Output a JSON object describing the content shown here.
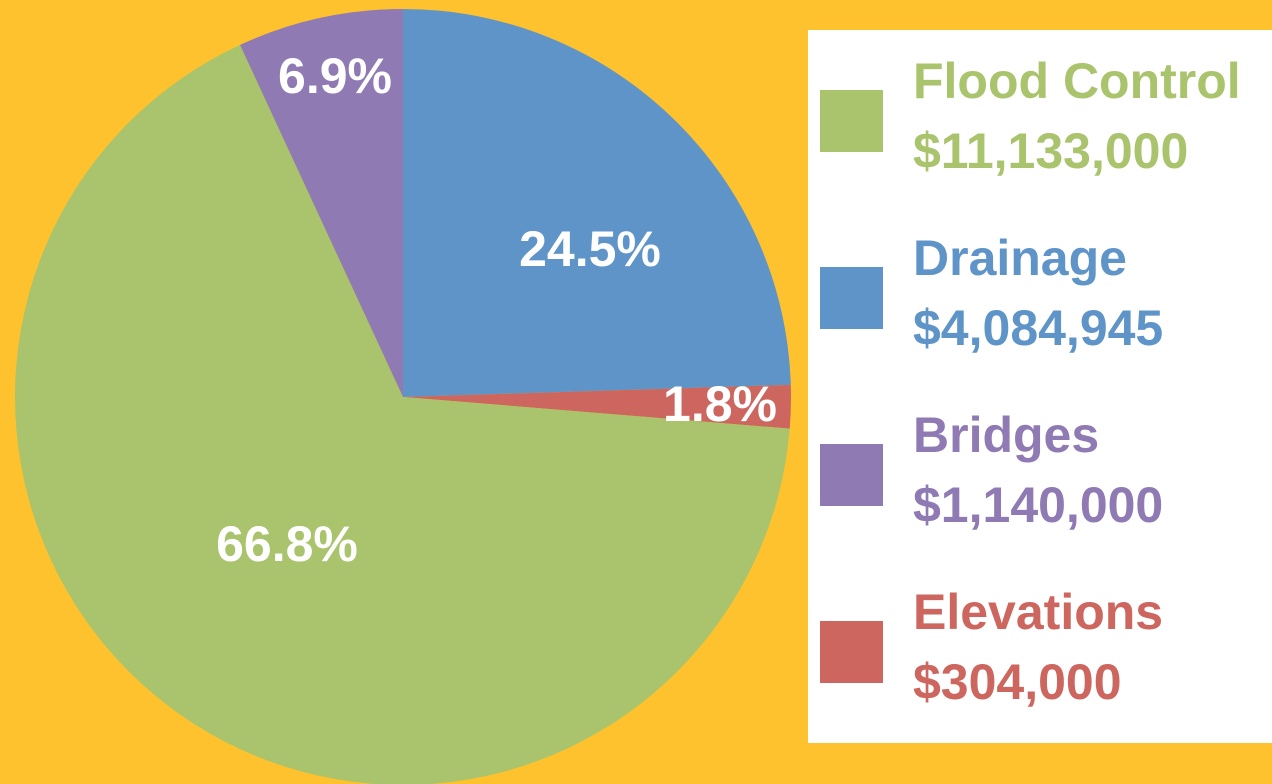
{
  "chart_data": {
    "type": "pie",
    "categories": [
      "Drainage",
      "Elevations",
      "Flood Control",
      "Bridges"
    ],
    "values": [
      24.5,
      1.8,
      66.8,
      6.9
    ],
    "value_labels": [
      "24.5%",
      "1.8%",
      "66.8%",
      "6.9%"
    ],
    "amount_labels": [
      "$4,084,945",
      "$304,000",
      "$11,133,000",
      "$1,140,000"
    ],
    "colors": [
      "#5f94c8",
      "#cc665e",
      "#a9c46c",
      "#8f7ab3"
    ]
  }
}
